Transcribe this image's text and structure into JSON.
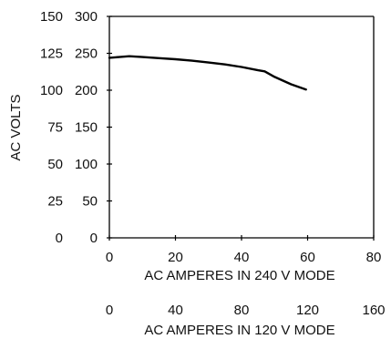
{
  "chart_data": {
    "type": "line",
    "title": "",
    "ylabel": "AC VOLTS",
    "xlabel_primary": "AC AMPERES IN 240 V MODE",
    "xlabel_secondary": "AC AMPERES IN 120 V MODE",
    "x_ticks_primary": [
      "0",
      "20",
      "40",
      "60",
      "80"
    ],
    "x_ticks_secondary": [
      "0",
      "40",
      "80",
      "120",
      "160"
    ],
    "y_ticks_outer": [
      "0",
      "25",
      "50",
      "75",
      "100",
      "125",
      "150"
    ],
    "y_ticks_inner": [
      "0",
      "50",
      "100",
      "150",
      "200",
      "250",
      "300"
    ],
    "xlim": [
      0,
      80
    ],
    "ylim": [
      0,
      300
    ],
    "grid": false,
    "series": [
      {
        "x": [
          0,
          3,
          6,
          10,
          15,
          20,
          25,
          30,
          35,
          40,
          45,
          47,
          50,
          55,
          59.5
        ],
        "y": [
          244,
          245,
          246,
          245,
          243.5,
          242,
          240,
          237.5,
          235,
          231.5,
          227,
          225.5,
          218,
          208,
          201
        ]
      }
    ],
    "line_color": "#000000"
  }
}
